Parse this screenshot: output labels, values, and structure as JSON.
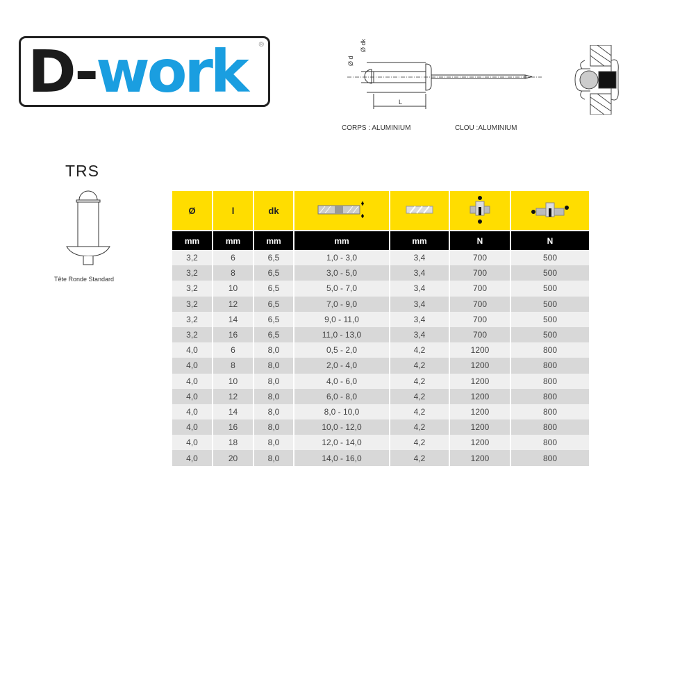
{
  "logo": {
    "text_dark": "D-",
    "text_blue": "work",
    "registered": "®",
    "brand_color": "#1a9ee0"
  },
  "diagram": {
    "labels": {
      "d": "Ø d",
      "dk": "Ø dk",
      "L": "L"
    },
    "body_material": "CORPS : ALUMINIUM",
    "mandrel_material": "CLOU :ALUMINIUM"
  },
  "head_type": {
    "code": "TRS",
    "caption": "Tête Ronde Standard"
  },
  "table": {
    "header_color": "#ffdd00",
    "headers": [
      {
        "label": "Ø"
      },
      {
        "label": "l"
      },
      {
        "label": "dk"
      },
      {
        "label": "",
        "icon": "grip-range-icon"
      },
      {
        "label": "",
        "icon": "drill-bit-icon"
      },
      {
        "label": "",
        "icon": "tensile-force-icon"
      },
      {
        "label": "",
        "icon": "shear-force-icon"
      }
    ],
    "units": [
      "mm",
      "mm",
      "mm",
      "mm",
      "mm",
      "N",
      "N"
    ],
    "rows": [
      [
        "3,2",
        "6",
        "6,5",
        "1,0 - 3,0",
        "3,4",
        "700",
        "500"
      ],
      [
        "3,2",
        "8",
        "6,5",
        "3,0 - 5,0",
        "3,4",
        "700",
        "500"
      ],
      [
        "3,2",
        "10",
        "6,5",
        "5,0 - 7,0",
        "3,4",
        "700",
        "500"
      ],
      [
        "3,2",
        "12",
        "6,5",
        "7,0 - 9,0",
        "3,4",
        "700",
        "500"
      ],
      [
        "3,2",
        "14",
        "6,5",
        "9,0 - 11,0",
        "3,4",
        "700",
        "500"
      ],
      [
        "3,2",
        "16",
        "6,5",
        "11,0 - 13,0",
        "3,4",
        "700",
        "500"
      ],
      [
        "4,0",
        "6",
        "8,0",
        "0,5 - 2,0",
        "4,2",
        "1200",
        "800"
      ],
      [
        "4,0",
        "8",
        "8,0",
        "2,0 - 4,0",
        "4,2",
        "1200",
        "800"
      ],
      [
        "4,0",
        "10",
        "8,0",
        "4,0 - 6,0",
        "4,2",
        "1200",
        "800"
      ],
      [
        "4,0",
        "12",
        "8,0",
        "6,0 - 8,0",
        "4,2",
        "1200",
        "800"
      ],
      [
        "4,0",
        "14",
        "8,0",
        "8,0 - 10,0",
        "4,2",
        "1200",
        "800"
      ],
      [
        "4,0",
        "16",
        "8,0",
        "10,0 - 12,0",
        "4,2",
        "1200",
        "800"
      ],
      [
        "4,0",
        "18",
        "8,0",
        "12,0 - 14,0",
        "4,2",
        "1200",
        "800"
      ],
      [
        "4,0",
        "20",
        "8,0",
        "14,0 - 16,0",
        "4,2",
        "1200",
        "800"
      ]
    ]
  }
}
